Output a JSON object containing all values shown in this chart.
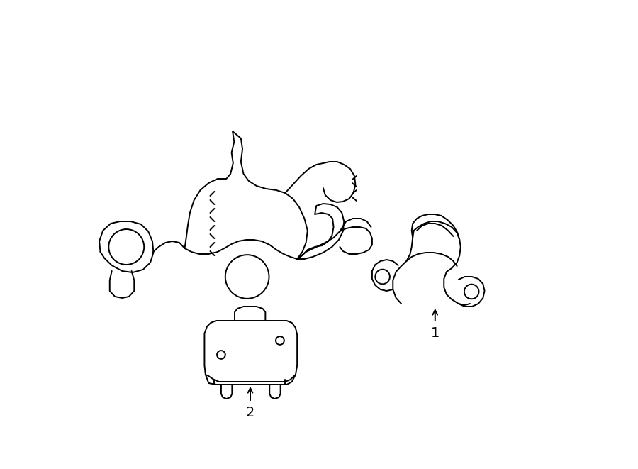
{
  "background_color": "#ffffff",
  "line_color": "#000000",
  "line_width": 1.4,
  "fig_width": 9.0,
  "fig_height": 6.61,
  "dpi": 100,
  "label1_text": "1",
  "label2_text": "2"
}
